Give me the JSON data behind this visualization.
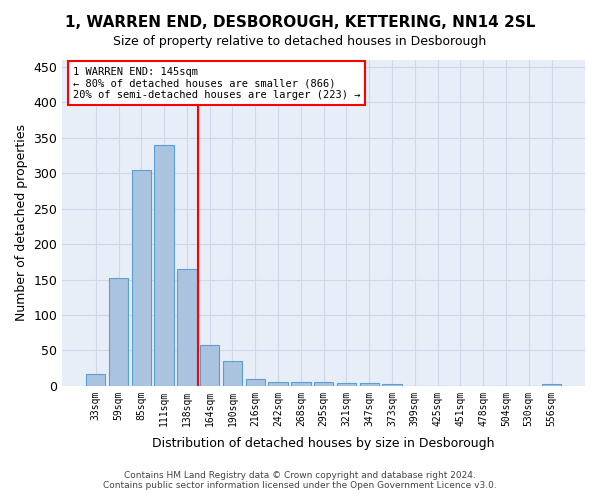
{
  "title1": "1, WARREN END, DESBOROUGH, KETTERING, NN14 2SL",
  "title2": "Size of property relative to detached houses in Desborough",
  "xlabel": "Distribution of detached houses by size in Desborough",
  "ylabel": "Number of detached properties",
  "categories": [
    "33sqm",
    "59sqm",
    "85sqm",
    "111sqm",
    "138sqm",
    "164sqm",
    "190sqm",
    "216sqm",
    "242sqm",
    "268sqm",
    "295sqm",
    "321sqm",
    "347sqm",
    "373sqm",
    "399sqm",
    "425sqm",
    "451sqm",
    "478sqm",
    "504sqm",
    "530sqm",
    "556sqm"
  ],
  "values": [
    17,
    152,
    305,
    340,
    165,
    57,
    35,
    10,
    6,
    5,
    5,
    4,
    4,
    3,
    0,
    0,
    0,
    0,
    0,
    0,
    3
  ],
  "bar_color": "#aac4e0",
  "bar_edge_color": "#5a9fd4",
  "property_label": "1 WARREN END: 145sqm",
  "annotation_line1": "← 80% of detached houses are smaller (866)",
  "annotation_line2": "20% of semi-detached houses are larger (223) →",
  "footer1": "Contains HM Land Registry data © Crown copyright and database right 2024.",
  "footer2": "Contains public sector information licensed under the Open Government Licence v3.0.",
  "ylim": [
    0,
    460
  ],
  "yticks": [
    0,
    50,
    100,
    150,
    200,
    250,
    300,
    350,
    400,
    450
  ],
  "vline_pos": 4.5,
  "grid_color": "#d0d8e8",
  "background_color": "#e8eef8"
}
